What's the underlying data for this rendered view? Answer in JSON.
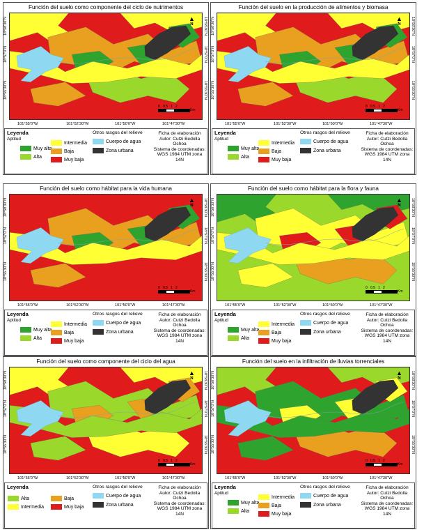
{
  "colors": {
    "muy_alta": "#2ea32e",
    "alta": "#9ad92b",
    "intermedia": "#ffff33",
    "baja": "#e8a01e",
    "muy_baja": "#e01b1b",
    "cuerpo_agua": "#8ed8f2",
    "zona_urbana": "#333333"
  },
  "coords": {
    "lat": [
      "18°58'30\"N",
      "18°57'0\"N",
      "18°55'30\"N"
    ],
    "lon": [
      "101°55'0\"W",
      "101°52'30\"W",
      "101°50'0\"W",
      "101°47'30\"W"
    ]
  },
  "legend_text": {
    "title": "Leyenda",
    "aptitud": "Aptitud",
    "otros": "Otros rasgos del relieve",
    "muy_alta": "Muy alta",
    "alta": "Alta",
    "intermedia": "Intermedia",
    "baja": "Baja",
    "muy_baja": "Muy baja",
    "cuerpo_agua": "Cuerpo de agua",
    "zona_urbana": "Zona urbana"
  },
  "info": [
    "Ficha de elaboración",
    "Autor: Cutzi Bedolla Ochoa",
    "Sistema de coordenadas:",
    "WGS 1984 UTM zona 14N"
  ],
  "scale": {
    "ticks": [
      "0",
      "0.5",
      "1",
      "2"
    ],
    "unit": "Km"
  },
  "north": "N",
  "panels": [
    {
      "title": "Función del suelo como componente del ciclo de nutrimentos",
      "base": "muy_baja",
      "legend_layout": "five",
      "layers": [
        [
          "intermedia",
          0
        ],
        [
          "baja",
          1
        ],
        [
          "muy_alta",
          2
        ],
        [
          "alta",
          3
        ],
        [
          "intermedia",
          4
        ]
      ]
    },
    {
      "title": "Función del suelo en la producción de alimentos y biomasa",
      "base": "muy_baja",
      "legend_layout": "five",
      "layers": [
        [
          "intermedia",
          0
        ],
        [
          "baja",
          1
        ],
        [
          "muy_alta",
          2
        ],
        [
          "alta",
          3
        ],
        [
          "intermedia",
          4
        ]
      ]
    },
    {
      "title": "Función del suelo como hábitat para la vida humana",
      "base": "muy_baja",
      "legend_layout": "five",
      "layers": [
        [
          "baja",
          1
        ],
        [
          "muy_alta",
          2
        ],
        [
          "intermedia",
          4
        ]
      ]
    },
    {
      "title": "Función del suelo como hábitat para la flora y fauna",
      "base": "alta",
      "legend_layout": "five",
      "layers": [
        [
          "muy_alta",
          0
        ],
        [
          "intermedia",
          1
        ],
        [
          "muy_baja",
          2
        ],
        [
          "baja",
          3
        ],
        [
          "intermedia",
          4
        ]
      ]
    },
    {
      "title": "Función del suelo como componente del ciclo del agua",
      "base": "muy_baja",
      "legend_layout": "four",
      "layers": [
        [
          "intermedia",
          0
        ],
        [
          "alta",
          1
        ],
        [
          "baja",
          2
        ],
        [
          "intermedia",
          3
        ],
        [
          "alta",
          4
        ]
      ]
    },
    {
      "title": "Función del suelo en la infiltración de lluvias torrenciales",
      "base": "muy_baja",
      "legend_layout": "five",
      "layers": [
        [
          "alta",
          0
        ],
        [
          "muy_alta",
          1
        ],
        [
          "intermedia",
          2
        ],
        [
          "baja",
          3
        ],
        [
          "muy_alta",
          4
        ]
      ]
    }
  ]
}
